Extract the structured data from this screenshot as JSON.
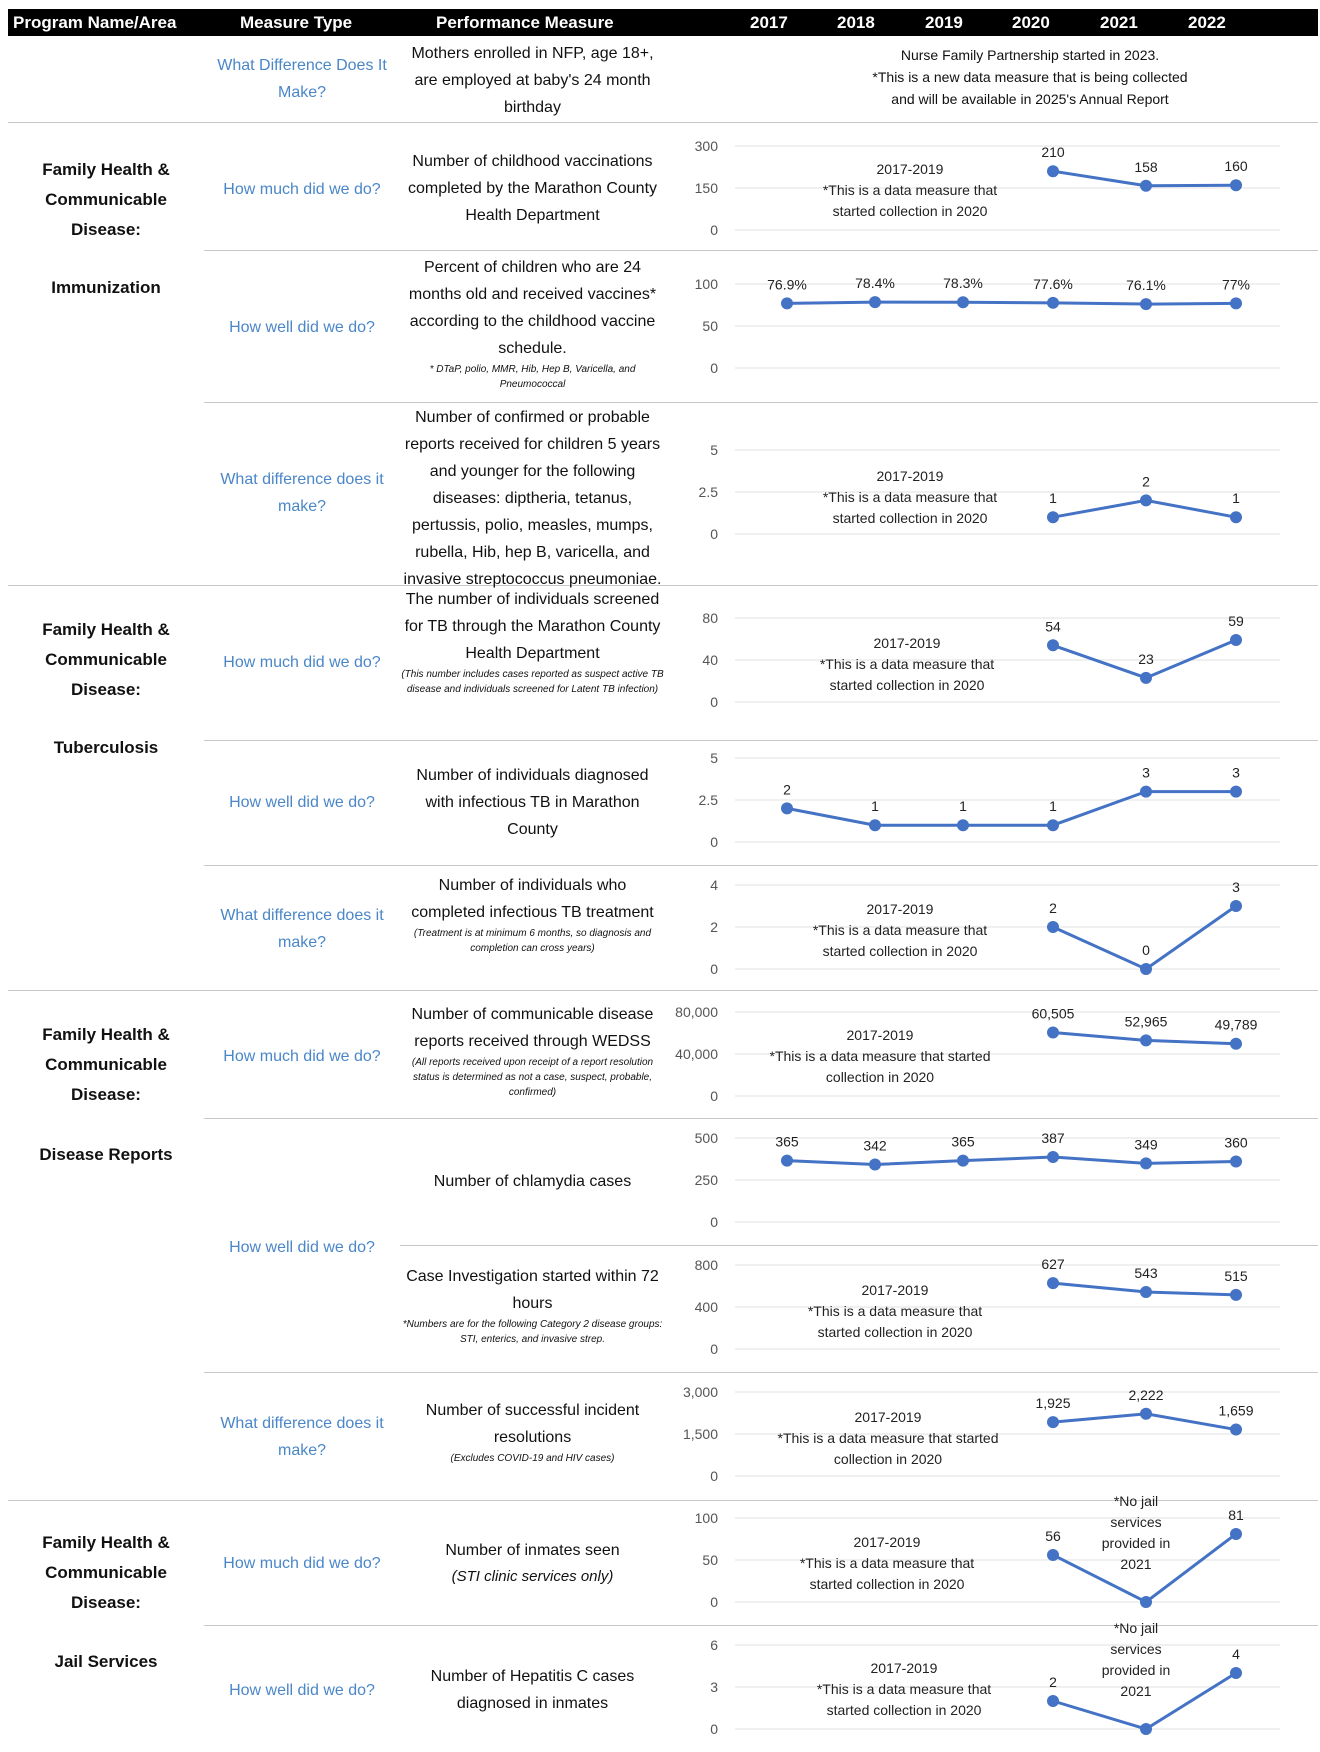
{
  "header": {
    "program": "Program Name/Area",
    "measure_type": "Measure Type",
    "performance_measure": "Performance Measure",
    "years": [
      "2017",
      "2018",
      "2019",
      "2020",
      "2021",
      "2022"
    ]
  },
  "sections": {
    "immunization": {
      "line1": "Family Health &",
      "line2": "Communicable",
      "line3": "Disease:",
      "name": "Immunization"
    },
    "tuberculosis": {
      "line1": "Family Health &",
      "line2": "Communicable",
      "line3": "Disease:",
      "name": "Tuberculosis"
    },
    "disease_reports": {
      "line1": "Family Health &",
      "line2": "Communicable",
      "line3": "Disease:",
      "name": "Disease Reports"
    },
    "jail_services": {
      "line1": "Family Health &",
      "line2": "Communicable",
      "line3": "Disease:",
      "name": "Jail Services"
    }
  },
  "measure_types": {
    "nfp": "What Difference Does It Make?",
    "m1": "How much did we do?",
    "m2": "How well did we do?",
    "m3": "What difference does it make?",
    "m4": "How much did we do?",
    "m5": "How well did we do?",
    "m6": "What difference does it make?",
    "m7": "How much did we do?",
    "m8": "How well did we do?",
    "m10": "What difference does it make?",
    "m11": "How much did we do?",
    "m12": "How well did we do?"
  },
  "measures": {
    "nfp": {
      "text": "Mothers enrolled in NFP, age 18+, are employed at baby's 24 month birthday"
    },
    "m1": {
      "text": "Number of childhood vaccinations completed by the Marathon County Health Department"
    },
    "m2": {
      "text": "Percent of children who are 24 months old and received vaccines* according to the childhood vaccine schedule.",
      "note": "* DTaP, polio, MMR, Hib, Hep B, Varicella, and Pneumococcal"
    },
    "m3": {
      "text": "Number of confirmed or probable reports received for children 5 years and younger for the following diseases: diptheria, tetanus, pertussis, polio, measles, mumps, rubella, Hib, hep B, varicella, and invasive streptococcus pneumoniae."
    },
    "m4": {
      "text": "The number of individuals screened for TB through the Marathon County Health Department",
      "note": "(This number includes cases reported as suspect active TB disease and individuals screened for Latent TB infection)"
    },
    "m5": {
      "text": "Number of individuals diagnosed with infectious TB in Marathon County"
    },
    "m6": {
      "text": "Number of individuals who completed infectious TB treatment",
      "note": "(Treatment is at minimum 6 months, so diagnosis and completion can cross years)"
    },
    "m7": {
      "text": "Number of communicable disease reports received through WEDSS",
      "note": "(All reports received upon receipt of a report resolution status is determined as not a case, suspect, probable, confirmed)"
    },
    "m8": {
      "text": "Number of chlamydia cases"
    },
    "m9": {
      "text": "Case Investigation started within 72 hours",
      "note": "*Numbers are for the following Category 2 disease groups: STI, enterics, and invasive strep."
    },
    "m10": {
      "text": "Number of successful incident resolutions",
      "note": "(Excludes COVID-19 and HIV cases)"
    },
    "m11": {
      "text": "Number of inmates seen",
      "note": "(STI clinic services only)"
    },
    "m12": {
      "text": "Number of Hepatitis C cases diagnosed in inmates"
    }
  },
  "nfp_note": [
    "Nurse Family Partnership started in 2023.",
    "*This is a new data measure that is being collected",
    "and will be available in 2025's Annual Report"
  ],
  "chart_data": [
    {
      "type": "line",
      "measure": "Number of childhood vaccinations",
      "x": [
        "2020",
        "2021",
        "2022"
      ],
      "values": [
        210,
        158,
        160
      ],
      "data_labels": [
        "210",
        "158",
        "160"
      ],
      "ylim": [
        0,
        300
      ],
      "yticks": [
        "0",
        "150",
        "300"
      ],
      "note": [
        "2017-2019",
        "*This is a data measure that",
        "started collection in 2020"
      ]
    },
    {
      "type": "line",
      "measure": "Percent of children 24 months vaccinated",
      "x": [
        "2017",
        "2018",
        "2019",
        "2020",
        "2021",
        "2022"
      ],
      "values": [
        76.9,
        78.4,
        78.3,
        77.6,
        76.1,
        77
      ],
      "data_labels": [
        "76.9%",
        "78.4%",
        "78.3%",
        "77.6%",
        "76.1%",
        "77%"
      ],
      "ylim": [
        0,
        100
      ],
      "yticks": [
        "0",
        "50",
        "100"
      ],
      "note": []
    },
    {
      "type": "line",
      "measure": "Confirmed or probable reports, children 5 and under",
      "x": [
        "2020",
        "2021",
        "2022"
      ],
      "values": [
        1,
        2,
        1
      ],
      "data_labels": [
        "1",
        "2",
        "1"
      ],
      "ylim": [
        0,
        5
      ],
      "yticks": [
        "0",
        "2.5",
        "5"
      ],
      "note": [
        "2017-2019",
        "*This is a data measure that",
        "started collection in 2020"
      ]
    },
    {
      "type": "line",
      "measure": "Individuals screened for TB",
      "x": [
        "2020",
        "2021",
        "2022"
      ],
      "values": [
        54,
        23,
        59
      ],
      "data_labels": [
        "54",
        "23",
        "59"
      ],
      "ylim": [
        0,
        80
      ],
      "yticks": [
        "0",
        "40",
        "80"
      ],
      "note": [
        "2017-2019",
        "*This is a data measure that",
        "started collection in 2020"
      ]
    },
    {
      "type": "line",
      "measure": "Individuals diagnosed with infectious TB",
      "x": [
        "2017",
        "2018",
        "2019",
        "2020",
        "2021",
        "2022"
      ],
      "values": [
        2,
        1,
        1,
        1,
        3,
        3
      ],
      "data_labels": [
        "2",
        "1",
        "1",
        "1",
        "3",
        "3"
      ],
      "ylim": [
        0,
        5
      ],
      "yticks": [
        "0",
        "2.5",
        "5"
      ],
      "note": []
    },
    {
      "type": "line",
      "measure": "Individuals who completed infectious TB treatment",
      "x": [
        "2020",
        "2021",
        "2022"
      ],
      "values": [
        2,
        0,
        3
      ],
      "data_labels": [
        "2",
        "0",
        "3"
      ],
      "ylim": [
        0,
        4
      ],
      "yticks": [
        "0",
        "2",
        "4"
      ],
      "note": [
        "2017-2019",
        "*This is a data measure that",
        "started collection in 2020"
      ]
    },
    {
      "type": "line",
      "measure": "Communicable disease reports received through WEDSS",
      "x": [
        "2020",
        "2021",
        "2022"
      ],
      "values": [
        60505,
        52965,
        49789
      ],
      "data_labels": [
        "60,505",
        "52,965",
        "49,789"
      ],
      "ylim": [
        0,
        80000
      ],
      "yticks": [
        "0",
        "40,000",
        "80,000"
      ],
      "note": [
        "2017-2019",
        "*This is a data measure that started",
        "collection in 2020"
      ]
    },
    {
      "type": "line",
      "measure": "Number of chlamydia cases",
      "x": [
        "2017",
        "2018",
        "2019",
        "2020",
        "2021",
        "2022"
      ],
      "values": [
        365,
        342,
        365,
        387,
        349,
        360
      ],
      "data_labels": [
        "365",
        "342",
        "365",
        "387",
        "349",
        "360"
      ],
      "ylim": [
        0,
        500
      ],
      "yticks": [
        "0",
        "250",
        "500"
      ],
      "note": []
    },
    {
      "type": "line",
      "measure": "Case investigation started within 72 hours",
      "x": [
        "2020",
        "2021",
        "2022"
      ],
      "values": [
        627,
        543,
        515
      ],
      "data_labels": [
        "627",
        "543",
        "515"
      ],
      "ylim": [
        0,
        800
      ],
      "yticks": [
        "0",
        "400",
        "800"
      ],
      "note": [
        "2017-2019",
        "*This is a data measure that",
        "started collection in 2020"
      ]
    },
    {
      "type": "line",
      "measure": "Successful incident resolutions",
      "x": [
        "2020",
        "2021",
        "2022"
      ],
      "values": [
        1925,
        2222,
        1659
      ],
      "data_labels": [
        "1,925",
        "2,222",
        "1,659"
      ],
      "ylim": [
        0,
        3000
      ],
      "yticks": [
        "0",
        "1,500",
        "3,000"
      ],
      "note": [
        "2017-2019",
        "*This is a data measure that started",
        "collection in 2020"
      ]
    },
    {
      "type": "line",
      "measure": "Number of inmates seen",
      "x": [
        "2020",
        "2021",
        "2022"
      ],
      "values": [
        56,
        0,
        81
      ],
      "data_labels": [
        "56",
        "",
        "81"
      ],
      "ylim": [
        0,
        100
      ],
      "yticks": [
        "0",
        "50",
        "100"
      ],
      "note": [
        "2017-2019",
        "*This is a data measure that",
        "started collection in 2020"
      ],
      "annotation": [
        "*No jail",
        "services",
        "provided in",
        "2021"
      ]
    },
    {
      "type": "line",
      "measure": "Hepatitis C cases diagnosed in inmates",
      "x": [
        "2020",
        "2021",
        "2022"
      ],
      "values": [
        2,
        0,
        4
      ],
      "data_labels": [
        "2",
        "",
        "4"
      ],
      "ylim": [
        0,
        6
      ],
      "yticks": [
        "0",
        "3",
        "6"
      ],
      "note": [
        "2017-2019",
        "*This is a data measure that",
        "started collection in 2020"
      ],
      "annotation": [
        "*No jail",
        "services",
        "provided in",
        "2021"
      ]
    }
  ],
  "colors": {
    "line": "#4472c4",
    "link": "#4a86c8",
    "header_bg": "#000000"
  }
}
